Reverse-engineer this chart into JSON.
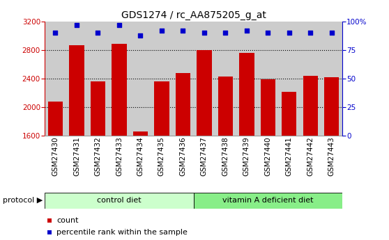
{
  "title": "GDS1274 / rc_AA875205_g_at",
  "samples": [
    "GSM27430",
    "GSM27431",
    "GSM27432",
    "GSM27433",
    "GSM27434",
    "GSM27435",
    "GSM27436",
    "GSM27437",
    "GSM27438",
    "GSM27439",
    "GSM27440",
    "GSM27441",
    "GSM27442",
    "GSM27443"
  ],
  "counts": [
    2080,
    2870,
    2360,
    2890,
    1660,
    2360,
    2480,
    2800,
    2430,
    2760,
    2390,
    2210,
    2440,
    2420
  ],
  "percentile_ranks": [
    90,
    97,
    90,
    97,
    88,
    92,
    92,
    90,
    90,
    92,
    90,
    90,
    90,
    90
  ],
  "ylim_left": [
    1600,
    3200
  ],
  "ylim_right": [
    0,
    100
  ],
  "yticks_left": [
    1600,
    2000,
    2400,
    2800,
    3200
  ],
  "yticks_right": [
    0,
    25,
    50,
    75,
    100
  ],
  "ytick_labels_right": [
    "0",
    "25",
    "50",
    "75",
    "100%"
  ],
  "bar_color": "#cc0000",
  "dot_color": "#0000cc",
  "control_diet_count": 7,
  "control_diet_label": "control diet",
  "vit_a_label": "vitamin A deficient diet",
  "protocol_label": "protocol",
  "legend_count_label": "count",
  "legend_pct_label": "percentile rank within the sample",
  "control_bg": "#ccffcc",
  "vit_a_bg": "#88ee88",
  "sample_bg": "#cccccc",
  "plot_bg": "#ffffff",
  "title_fontsize": 10,
  "tick_fontsize": 7.5
}
